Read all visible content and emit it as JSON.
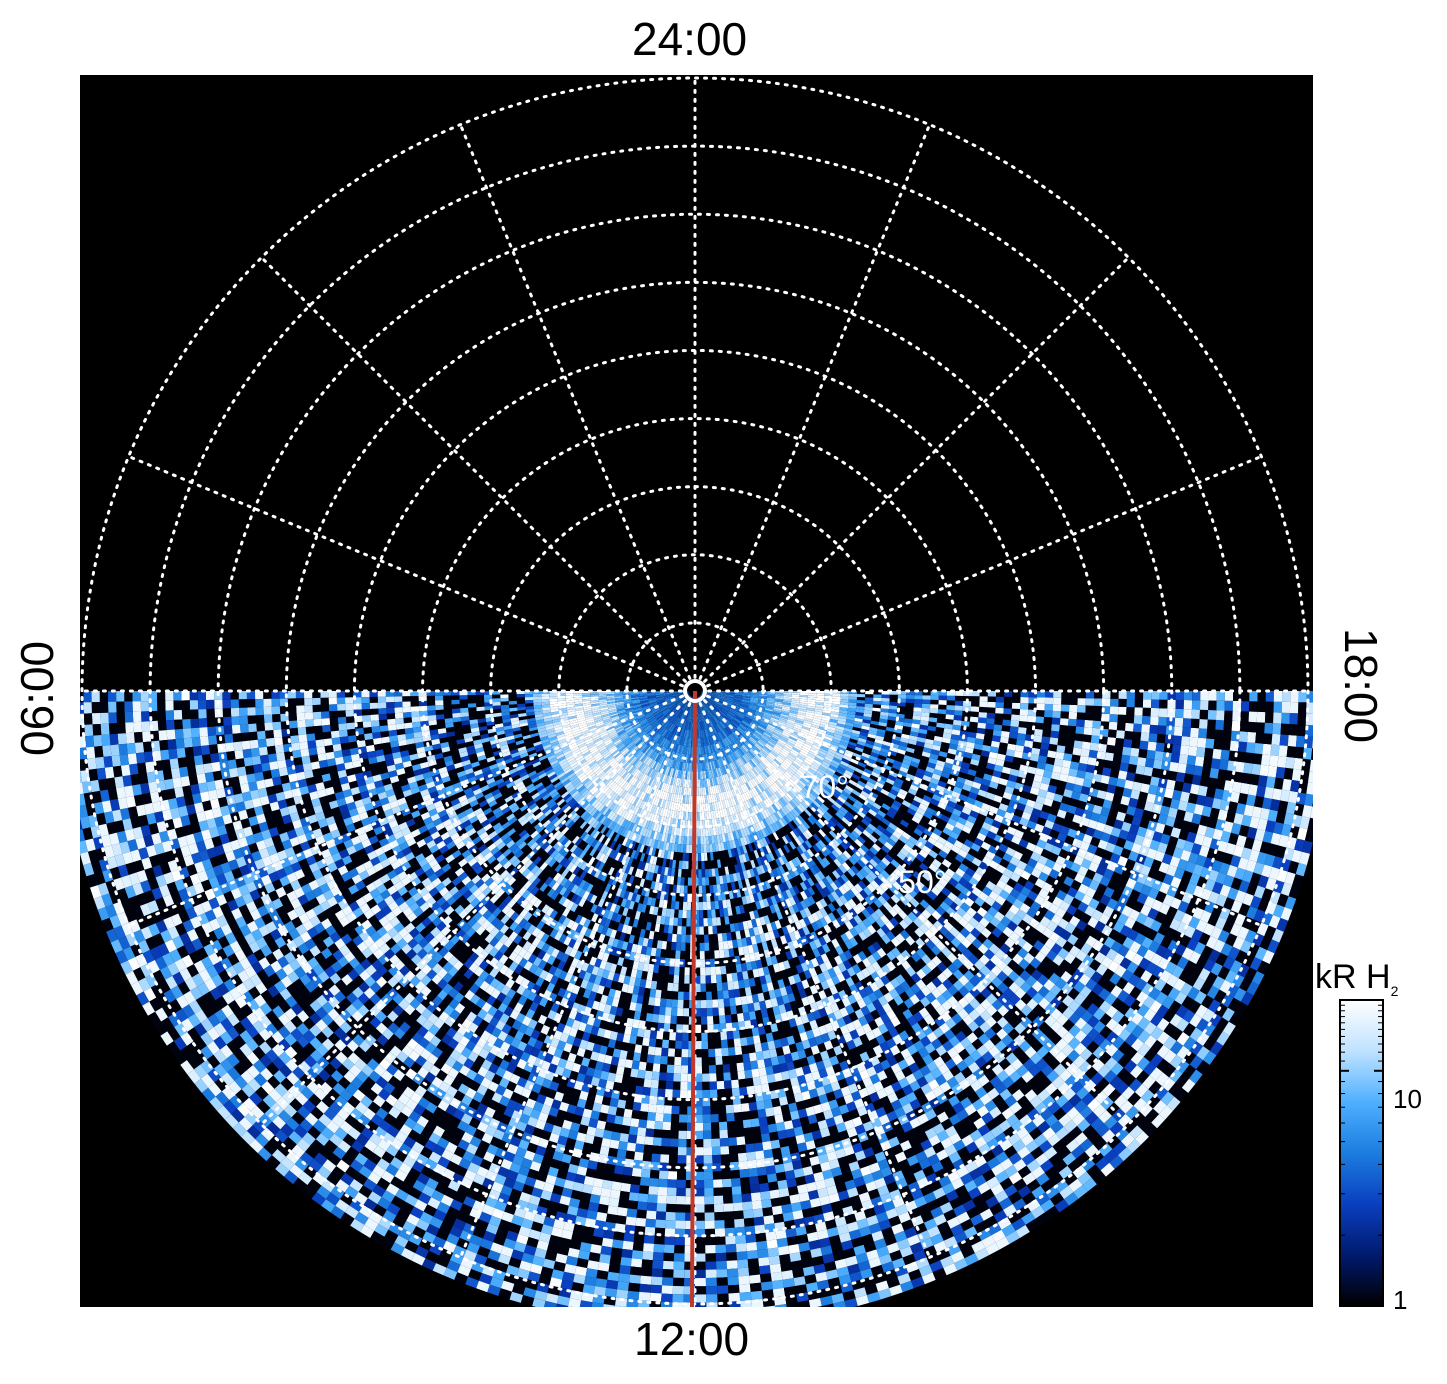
{
  "chart_data": {
    "type": "heatmap",
    "projection": "polar",
    "local_time_labels": {
      "top": "24:00",
      "bottom": "12:00",
      "left": "06:00",
      "right": "18:00"
    },
    "latitude_labels": [
      {
        "text": "70°",
        "latitude": 70
      },
      {
        "text": "50°",
        "latitude": 50
      }
    ],
    "latitude_rings": [
      80,
      70,
      60,
      50,
      40,
      30,
      20,
      10,
      0
    ],
    "meridian_step_hours": 1.5,
    "grid": true,
    "colorbar": {
      "title": "kR",
      "species": "H",
      "subscript": "2",
      "ticks": [
        "10",
        "1"
      ],
      "scale": "log",
      "range": [
        1,
        20
      ],
      "colors": [
        "#000000",
        "#001a6e",
        "#0a3fc0",
        "#1c7de0",
        "#4fb0ff",
        "#bfe2ff",
        "#ffffff"
      ]
    },
    "cut_line": {
      "color": "#c0392b",
      "local_time": "12:00"
    },
    "auroral_oval": {
      "peak_latitude": 73,
      "peak_brightness_kR": 20
    }
  }
}
